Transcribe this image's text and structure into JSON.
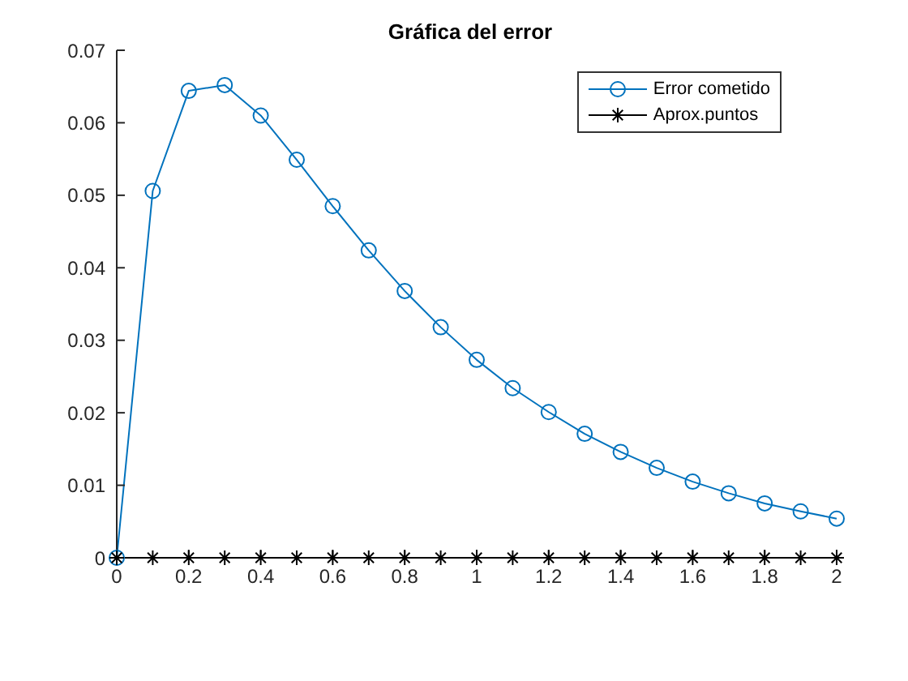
{
  "chart_data": {
    "type": "line",
    "title": "Gráfica del error",
    "x": [
      0,
      0.1,
      0.2,
      0.3,
      0.4,
      0.5,
      0.6,
      0.7,
      0.8,
      0.9,
      1,
      1.1,
      1.2,
      1.3,
      1.4,
      1.5,
      1.6,
      1.7,
      1.8,
      1.9,
      2
    ],
    "series": [
      {
        "name": "Error cometido",
        "color": "#0072bd",
        "marker": "circle",
        "values": [
          0,
          0.0506,
          0.0644,
          0.0652,
          0.061,
          0.0549,
          0.0485,
          0.0424,
          0.0368,
          0.0318,
          0.0273,
          0.0234,
          0.0201,
          0.0171,
          0.0146,
          0.0124,
          0.0105,
          0.0089,
          0.0075,
          0.0064,
          0.0054
        ]
      },
      {
        "name": "Aprox.puntos",
        "color": "#000000",
        "marker": "cross",
        "values": [
          0,
          0,
          0,
          0,
          0,
          0,
          0,
          0,
          0,
          0,
          0,
          0,
          0,
          0,
          0,
          0,
          0,
          0,
          0,
          0,
          0
        ]
      }
    ],
    "xlim": [
      0,
      2
    ],
    "xticks": [
      0,
      0.2,
      0.4,
      0.6,
      0.8,
      1,
      1.2,
      1.4,
      1.6,
      1.8,
      2
    ],
    "ylim": [
      0,
      0.07
    ],
    "yticks": [
      0,
      0.01,
      0.02,
      0.03,
      0.04,
      0.05,
      0.06,
      0.07
    ],
    "grid": false,
    "legend": "top right",
    "line_style": "solid"
  }
}
